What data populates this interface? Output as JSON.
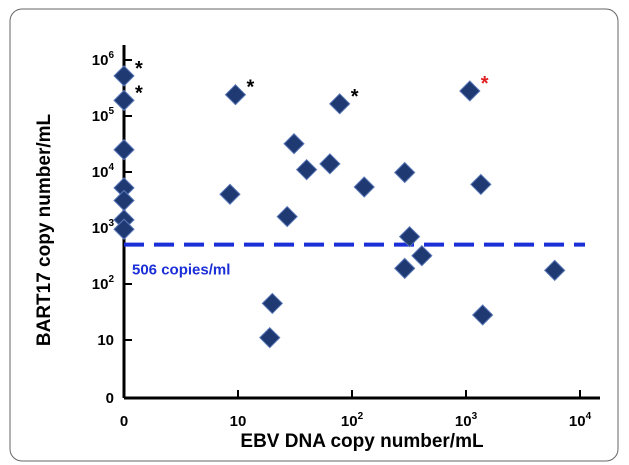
{
  "chart_data": {
    "type": "scatter",
    "xlabel": "EBV DNA copy number/mL",
    "ylabel": "BART17 copy number/mL",
    "x_scale": "log (with 0 plotted at axis origin)",
    "y_scale": "log (with 0 plotted at axis origin)",
    "x_ticks": [
      {
        "value": 0,
        "base": "0",
        "exp": ""
      },
      {
        "value": 10,
        "base": "10",
        "exp": ""
      },
      {
        "value": 100,
        "base": "10",
        "exp": "2"
      },
      {
        "value": 1000,
        "base": "10",
        "exp": "3"
      },
      {
        "value": 10000,
        "base": "10",
        "exp": "4"
      }
    ],
    "y_ticks": [
      {
        "value": 0,
        "base": "0",
        "exp": ""
      },
      {
        "value": 10,
        "base": "10",
        "exp": ""
      },
      {
        "value": 100,
        "base": "10",
        "exp": "2"
      },
      {
        "value": 1000,
        "base": "10",
        "exp": "3"
      },
      {
        "value": 10000,
        "base": "10",
        "exp": "4"
      },
      {
        "value": 100000,
        "base": "10",
        "exp": "5"
      },
      {
        "value": 1000000,
        "base": "10",
        "exp": "6"
      }
    ],
    "marker_color": "#1f3a73",
    "points": [
      {
        "x": 0,
        "y": 520000,
        "star": "*",
        "star_color": "#000000"
      },
      {
        "x": 0,
        "y": 190000,
        "star": "*",
        "star_color": "#000000"
      },
      {
        "x": 0,
        "y": 25000
      },
      {
        "x": 0,
        "y": 5200
      },
      {
        "x": 0,
        "y": 3100
      },
      {
        "x": 0,
        "y": 1400
      },
      {
        "x": 0,
        "y": 950
      },
      {
        "x": 8.5,
        "y": 4000
      },
      {
        "x": 9.5,
        "y": 240000,
        "star": "*",
        "star_color": "#000000"
      },
      {
        "x": 20,
        "y": 45
      },
      {
        "x": 19,
        "y": 11
      },
      {
        "x": 27,
        "y": 1600
      },
      {
        "x": 31,
        "y": 32000
      },
      {
        "x": 40,
        "y": 11000
      },
      {
        "x": 64,
        "y": 14000
      },
      {
        "x": 78,
        "y": 165000,
        "star": "*",
        "star_color": "#000000"
      },
      {
        "x": 128,
        "y": 5400
      },
      {
        "x": 290,
        "y": 9800
      },
      {
        "x": 320,
        "y": 700
      },
      {
        "x": 290,
        "y": 190
      },
      {
        "x": 410,
        "y": 320
      },
      {
        "x": 1080,
        "y": 280000,
        "star": "*",
        "star_color": "#e02020"
      },
      {
        "x": 1350,
        "y": 6000
      },
      {
        "x": 1400,
        "y": 28
      },
      {
        "x": 6000,
        "y": 175
      }
    ],
    "threshold": {
      "y": 506,
      "label": "506 copies/ml",
      "color": "#1a2fd8",
      "style": "dashed"
    }
  }
}
